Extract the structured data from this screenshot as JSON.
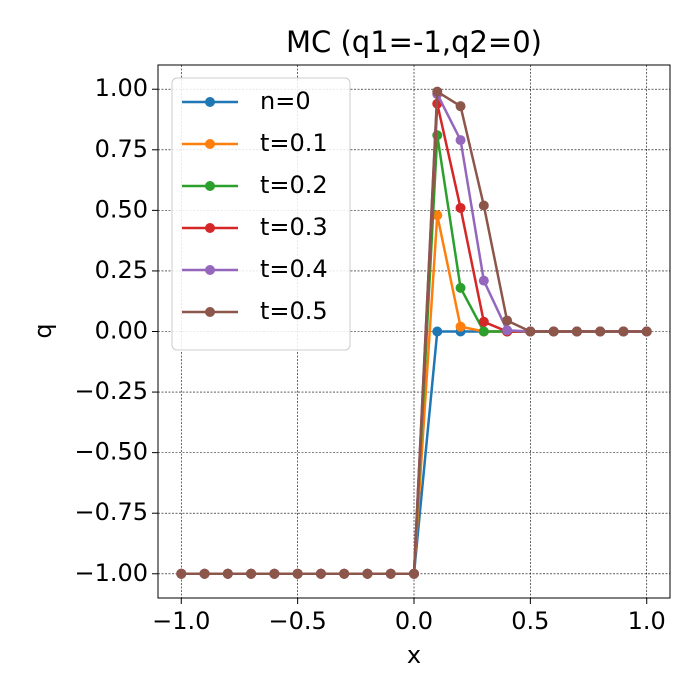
{
  "chart_data": {
    "type": "line",
    "title": "MC (q1=-1,q2=0)",
    "x_label": "x",
    "y_label": "q",
    "x": [
      -1.0,
      -0.9,
      -0.8,
      -0.7,
      -0.6,
      -0.5,
      -0.4,
      -0.3,
      -0.2,
      -0.1,
      0.0,
      0.1,
      0.2,
      0.3,
      0.4,
      0.5,
      0.6,
      0.7,
      0.8,
      0.9,
      1.0
    ],
    "series": [
      {
        "name": "n=0",
        "color": "#1f77b4",
        "values": [
          -1,
          -1,
          -1,
          -1,
          -1,
          -1,
          -1,
          -1,
          -1,
          -1,
          -1,
          0,
          0,
          0,
          0,
          0,
          0,
          0,
          0,
          0,
          0
        ]
      },
      {
        "name": "t=0.1",
        "color": "#ff7f0e",
        "values": [
          -1,
          -1,
          -1,
          -1,
          -1,
          -1,
          -1,
          -1,
          -1,
          -1,
          -1,
          0.48,
          0.02,
          0,
          0,
          0,
          0,
          0,
          0,
          0,
          0
        ]
      },
      {
        "name": "t=0.2",
        "color": "#2ca02c",
        "values": [
          -1,
          -1,
          -1,
          -1,
          -1,
          -1,
          -1,
          -1,
          -1,
          -1,
          -1,
          0.81,
          0.18,
          0.0,
          0,
          0,
          0,
          0,
          0,
          0,
          0
        ]
      },
      {
        "name": "t=0.3",
        "color": "#d62728",
        "values": [
          -1,
          -1,
          -1,
          -1,
          -1,
          -1,
          -1,
          -1,
          -1,
          -1,
          -1,
          0.94,
          0.51,
          0.04,
          0.0,
          0,
          0,
          0,
          0,
          0,
          0
        ]
      },
      {
        "name": "t=0.4",
        "color": "#9467bd",
        "values": [
          -1,
          -1,
          -1,
          -1,
          -1,
          -1,
          -1,
          -1,
          -1,
          -1,
          -1,
          0.98,
          0.79,
          0.21,
          0.005,
          0,
          0,
          0,
          0,
          0,
          0
        ]
      },
      {
        "name": "t=0.5",
        "color": "#8c564b",
        "values": [
          -1,
          -1,
          -1,
          -1,
          -1,
          -1,
          -1,
          -1,
          -1,
          -1,
          -1,
          0.99,
          0.93,
          0.52,
          0.045,
          0.0,
          0,
          0,
          0,
          0,
          0
        ]
      }
    ],
    "xlim": [
      -1.1,
      1.1
    ],
    "ylim": [
      -1.1,
      1.1
    ],
    "xticks": [
      {
        "value": -1.0,
        "label": "−1.0"
      },
      {
        "value": -0.5,
        "label": "−0.5"
      },
      {
        "value": 0.0,
        "label": "0.0"
      },
      {
        "value": 0.5,
        "label": "0.5"
      },
      {
        "value": 1.0,
        "label": "1.0"
      }
    ],
    "yticks": [
      {
        "value": -1.0,
        "label": "−1.00"
      },
      {
        "value": -0.75,
        "label": "−0.75"
      },
      {
        "value": -0.5,
        "label": "−0.50"
      },
      {
        "value": -0.25,
        "label": "−0.25"
      },
      {
        "value": 0.0,
        "label": "0.00"
      },
      {
        "value": 0.25,
        "label": "0.25"
      },
      {
        "value": 0.5,
        "label": "0.50"
      },
      {
        "value": 0.75,
        "label": "0.75"
      },
      {
        "value": 1.0,
        "label": "1.00"
      }
    ],
    "grid": true,
    "legend_position": "upper left"
  }
}
